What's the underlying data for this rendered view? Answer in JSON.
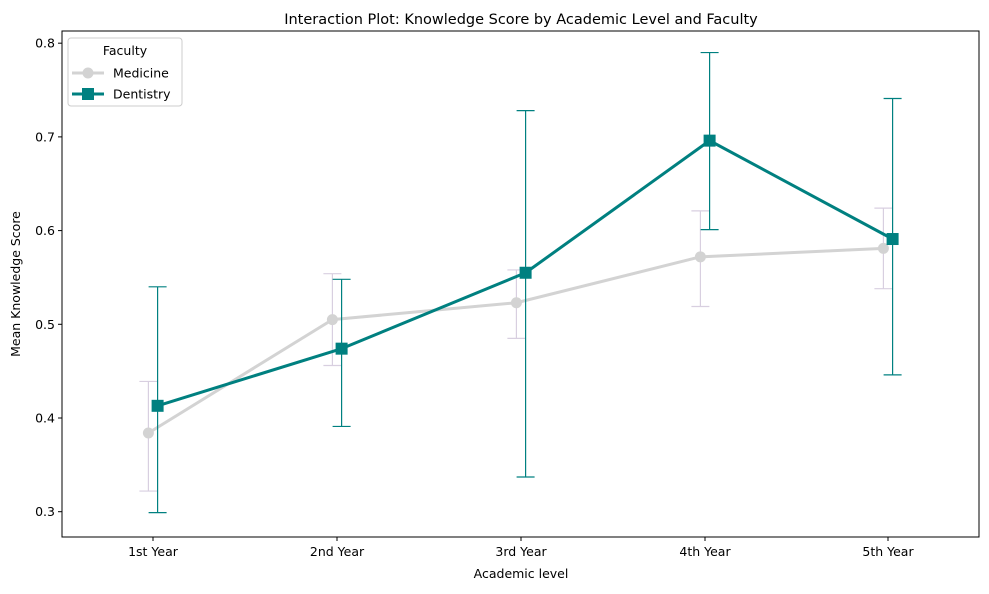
{
  "chart_data": {
    "type": "line",
    "title": "Interaction Plot: Knowledge Score by Academic Level and Faculty",
    "xlabel": "Academic level",
    "ylabel": "Mean Knowledge Score",
    "categories": [
      "1st Year",
      "2nd Year",
      "3rd Year",
      "4th Year",
      "5th Year"
    ],
    "ylim": [
      0.273,
      0.813
    ],
    "yticks": [
      0.3,
      0.4,
      0.5,
      0.6,
      0.7,
      0.8
    ],
    "ytick_labels": [
      "0.3",
      "0.4",
      "0.5",
      "0.6",
      "0.7",
      "0.8"
    ],
    "grid": false,
    "legend": {
      "title": "Faculty",
      "placement": "top-left"
    },
    "series": [
      {
        "name": "Medicine",
        "color": "#d3d3d3",
        "errcolor": "#d8cfe0",
        "marker": "circle",
        "values": [
          0.384,
          0.505,
          0.523,
          0.572,
          0.581
        ],
        "ci_low": [
          0.322,
          0.456,
          0.485,
          0.519,
          0.538
        ],
        "ci_high": [
          0.439,
          0.554,
          0.558,
          0.621,
          0.624
        ]
      },
      {
        "name": "Dentistry",
        "color": "#008080",
        "errcolor": "#008080",
        "marker": "square",
        "values": [
          0.413,
          0.474,
          0.555,
          0.696,
          0.591
        ],
        "ci_low": [
          0.299,
          0.391,
          0.337,
          0.601,
          0.446
        ],
        "ci_high": [
          0.54,
          0.548,
          0.728,
          0.79,
          0.741
        ]
      }
    ]
  }
}
